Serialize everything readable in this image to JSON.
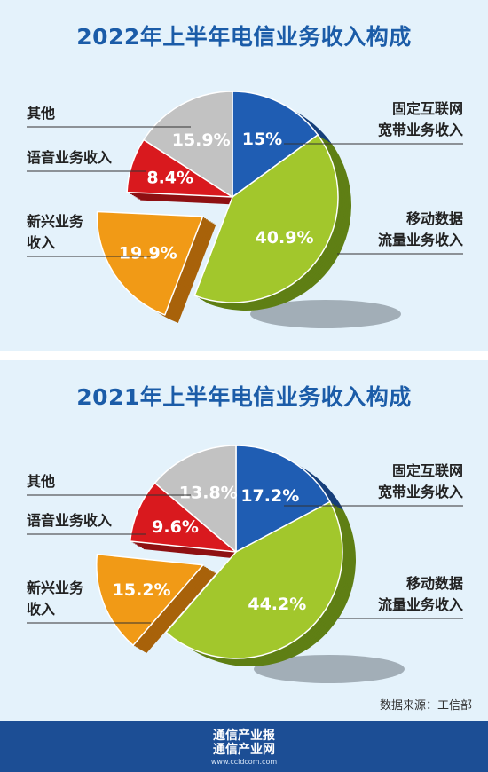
{
  "chart_data": [
    {
      "type": "pie",
      "title": "2022年上半年电信业务收入构成",
      "slices": [
        {
          "name": "固定互联网宽带业务收入",
          "value": 15,
          "label": "15%",
          "color": "#1f5db3",
          "side_color": "#163f7a"
        },
        {
          "name": "移动数据流量业务收入",
          "value": 40.9,
          "label": "40.9%",
          "color": "#a2c72c",
          "side_color": "#5f7f14"
        },
        {
          "name": "新兴业务收入",
          "value": 19.9,
          "label": "19.9%",
          "color": "#f19a16",
          "side_color": "#a8620a"
        },
        {
          "name": "语音业务收入",
          "value": 8.4,
          "label": "8.4%",
          "color": "#d9191e",
          "side_color": "#8e1013"
        },
        {
          "name": "其他",
          "value": 15.9,
          "label": "15.9%",
          "color": "#c2c2c2",
          "side_color": "#8e8e8e"
        }
      ],
      "legend": {
        "left": [
          [
            "其他"
          ],
          [
            "语音业务收入"
          ],
          [
            "新兴业务",
            "收入"
          ]
        ],
        "right": [
          [
            "固定互联网",
            "宽带业务收入"
          ],
          [
            "移动数据",
            "流量业务收入"
          ]
        ]
      }
    },
    {
      "type": "pie",
      "title": "2021年上半年电信业务收入构成",
      "slices": [
        {
          "name": "固定互联网宽带业务收入",
          "value": 17.2,
          "label": "17.2%",
          "color": "#1f5db3",
          "side_color": "#163f7a"
        },
        {
          "name": "移动数据流量业务收入",
          "value": 44.2,
          "label": "44.2%",
          "color": "#a2c72c",
          "side_color": "#5f7f14"
        },
        {
          "name": "新兴业务收入",
          "value": 15.2,
          "label": "15.2%",
          "color": "#f19a16",
          "side_color": "#a8620a"
        },
        {
          "name": "语音业务收入",
          "value": 9.6,
          "label": "9.6%",
          "color": "#d9191e",
          "side_color": "#8e1013"
        },
        {
          "name": "其他",
          "value": 13.8,
          "label": "13.8%",
          "color": "#c2c2c2",
          "side_color": "#8e8e8e"
        }
      ],
      "legend": {
        "left": [
          [
            "其他"
          ],
          [
            "语音业务收入"
          ],
          [
            "新兴业务",
            "收入"
          ]
        ],
        "right": [
          [
            "固定互联网",
            "宽带业务收入"
          ],
          [
            "移动数据",
            "流量业务收入"
          ]
        ]
      }
    }
  ],
  "source": "数据来源：工信部",
  "footer": {
    "line1": "通信产业报",
    "line2": "通信产业网",
    "url": "www.ccidcom.com"
  }
}
